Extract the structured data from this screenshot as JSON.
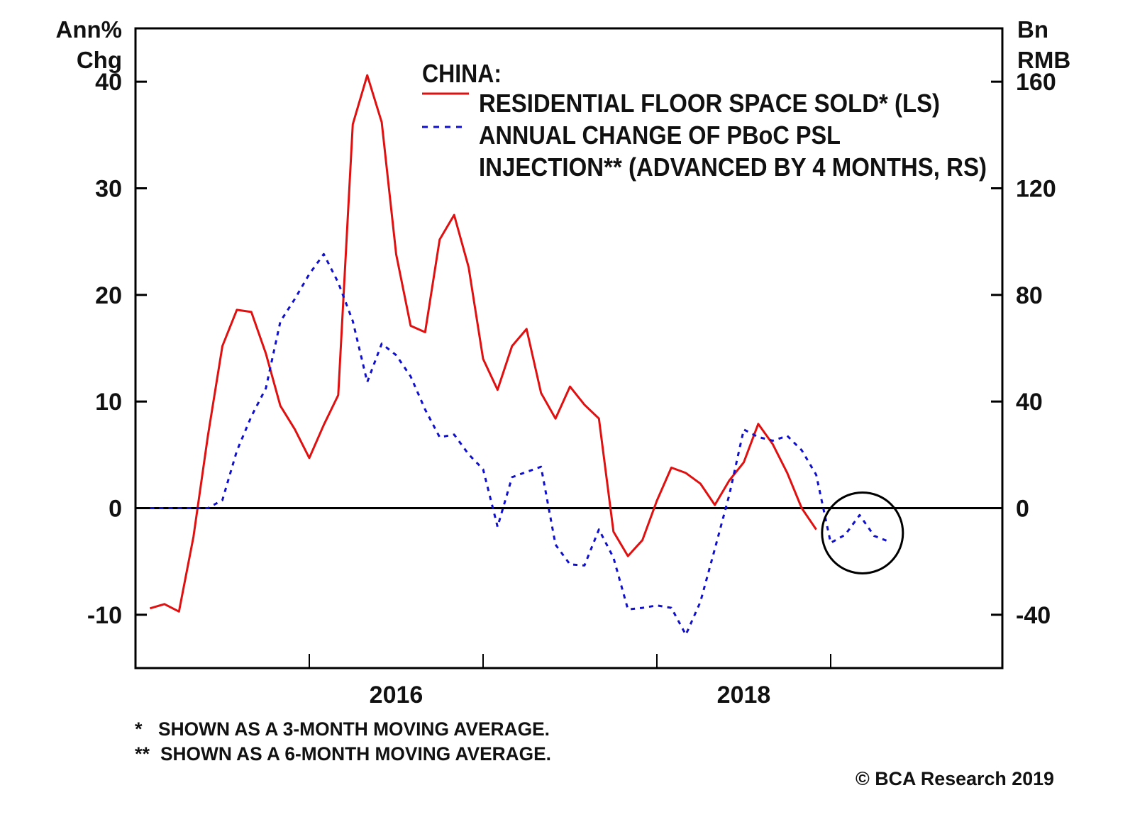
{
  "chart_data": {
    "type": "line",
    "title": "CHINA:",
    "left_axis": {
      "label_line1": "Ann%",
      "label_line2": "Chg",
      "ylim": [
        -15,
        45
      ],
      "ticks": [
        40,
        30,
        20,
        10,
        0,
        -10
      ],
      "tick_labels": [
        "40",
        "30",
        "20",
        "10",
        "0",
        "-10"
      ]
    },
    "right_axis": {
      "label_line1": "Bn",
      "label_line2": "RMB",
      "ylim": [
        -60,
        180
      ],
      "ticks": [
        160,
        120,
        80,
        40,
        0,
        -40
      ],
      "tick_labels": [
        "160",
        "120",
        "80",
        "40",
        "0",
        "-40"
      ]
    },
    "x_axis": {
      "range": [
        "2015-01",
        "2020-01"
      ],
      "year_ticks": [
        "2016-01",
        "2017-01",
        "2018-01",
        "2019-01"
      ],
      "tick_labels": [
        "2016",
        "2018"
      ],
      "label_positions": [
        "2016",
        "2018"
      ]
    },
    "grid": false,
    "zero_line": true,
    "legend_placement": "top-right",
    "series": [
      {
        "name": "RESIDENTIAL FLOOR SPACE SOLD* (LS)",
        "axis": "left",
        "color": "#e01010",
        "style": "solid",
        "start_month": "2015-02",
        "frequency": "monthly",
        "values": [
          -9.4,
          -9.0,
          -9.7,
          -2.7,
          6.8,
          15.2,
          18.6,
          18.4,
          14.5,
          9.6,
          7.4,
          4.7,
          7.8,
          10.6,
          36.0,
          40.6,
          36.2,
          23.8,
          17.1,
          16.5,
          25.2,
          27.5,
          22.6,
          14.0,
          11.1,
          15.2,
          16.8,
          10.8,
          8.4,
          11.4,
          9.7,
          8.4,
          -2.2,
          -4.5,
          -3.0,
          0.7,
          3.8,
          3.3,
          2.3,
          0.3,
          2.6,
          4.3,
          7.9,
          6.0,
          3.3,
          0.0,
          -2.0
        ]
      },
      {
        "name_line1": "ANNUAL CHANGE OF PBoC PSL",
        "name_line2": "INJECTION** (ADVANCED BY 4 MONTHS, RS)",
        "axis": "right",
        "color": "#1010cc",
        "style": "dashed",
        "start_month": "2015-02",
        "frequency": "monthly",
        "values": [
          0,
          0,
          0,
          0,
          0,
          3,
          21.5,
          34.4,
          45,
          70,
          78.5,
          87.8,
          95.3,
          84.6,
          70.2,
          47.3,
          61.7,
          57.4,
          49.4,
          37,
          26.6,
          27.6,
          20.2,
          14.6,
          -7,
          11.6,
          13.6,
          15.5,
          -13.7,
          -21.1,
          -21.5,
          -8,
          -18.6,
          -38,
          -37.4,
          -36.5,
          -37.4,
          -47.5,
          -35.2,
          -15.3,
          5,
          29.5,
          26.7,
          25.3,
          27.1,
          21.7,
          12.5,
          -13,
          -10,
          -2.6,
          -10.4,
          -12.5
        ]
      }
    ],
    "annotations": [
      {
        "type": "circle",
        "color": "#000000",
        "around": "2019 PSL values (2019-02 to 2019-05)"
      }
    ],
    "footnotes": [
      {
        "mark": "*",
        "text": "SHOWN AS A 3-MONTH MOVING AVERAGE."
      },
      {
        "mark": "**",
        "text": "SHOWN AS A 6-MONTH MOVING AVERAGE."
      }
    ],
    "source": "© BCA Research 2019"
  }
}
